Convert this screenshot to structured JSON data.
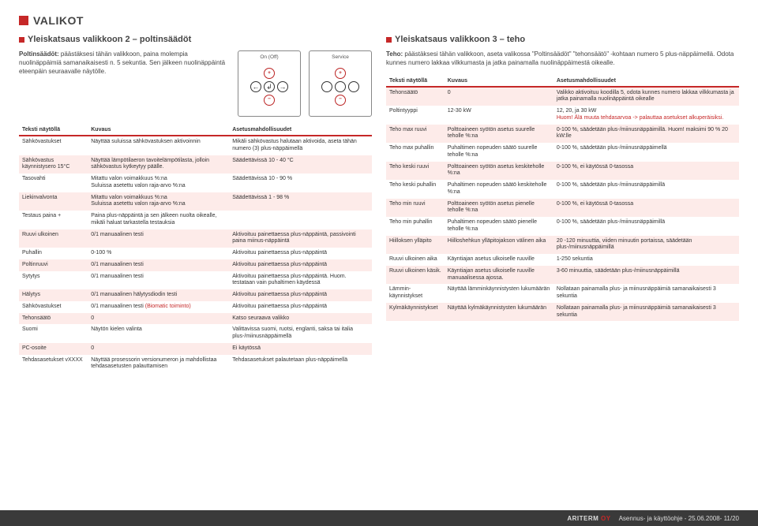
{
  "page_title": "VALIKOT",
  "footer": {
    "brand_main": "ARITERM",
    "brand_suffix": "OY",
    "doc": "Asennus- ja käyttöohje - 25.06.2008- 11/20"
  },
  "left": {
    "title": "Yleiskatsaus valikkoon 2 – poltinsäädöt",
    "intro_bold": "Poltinsäädöt:",
    "intro_rest": " päästäksesi tähän valikkoon, paina molempia nuolinäppäimiä samanaikaisesti n. 5 sekuntia. Sen jälkeen nuolinäppäintä eteenpäin seuraavalle näytölle.",
    "diag1": "On (Off)",
    "diag2": "Service",
    "headers": [
      "Teksti näytöllä",
      "Kuvaus",
      "Asetusmahdollisuudet"
    ],
    "rows": [
      {
        "band": false,
        "c": [
          "Sähkövastukset",
          "Näyttää suluissa sähkövastuksen aktivoinnin",
          "Mikäli sähkövastus halutaan aktivoida, aseta tähän numero (3) plus-näppäimellä"
        ]
      },
      {
        "band": true,
        "c": [
          "Sähkövastus käynnistysero 15°C",
          "Näyttää lämpötilaeron tavoitelämpötilasta, jolloin sähkövastus kytkeytyy päälle.",
          "Säädettävissä 10 - 40 °C"
        ]
      },
      {
        "band": false,
        "c": [
          "Tasovahti",
          "Mitattu valon voimakkuus %:na\nSuluissa asetettu valon raja-arvo %:na",
          "Säädettävissä 10 - 90 %"
        ]
      },
      {
        "band": true,
        "c": [
          "Liekinvalvonta",
          "Mitattu valon voimakkuus %:na\nSuluissa asetettu valon raja-arvo %:na",
          "Säädettävissä 1 - 98 %"
        ]
      },
      {
        "band": false,
        "c": [
          "Testaus paina +",
          "Paina plus-näppäintä ja sen jälkeen nuolta oikealle, mikäli haluat tarkastella testauksia",
          ""
        ]
      },
      {
        "band": true,
        "c": [
          "Ruuvi ulkoinen",
          "0/1 manuaalinen testi",
          "Aktivoituu painettaessa plus-näppäintä, passivointi paina miinus-näppäintä"
        ]
      },
      {
        "band": false,
        "c": [
          "Puhallin",
          "0-100 %",
          "Aktivoituu painettaessa plus-näppäintä"
        ]
      },
      {
        "band": true,
        "c": [
          "Poltinruuvi",
          "0/1 manuaalinen testi",
          "Aktivoituu painettaessa plus-näppäintä"
        ]
      },
      {
        "band": false,
        "c": [
          "Sytytys",
          "0/1 manuaalinen testi",
          "Aktivoituu painettaessa plus-näppäintä. Huom. testataan vain puhaltimen käydessä"
        ]
      },
      {
        "band": true,
        "c": [
          "Hälytys",
          "0/1 manuaalinen hälytysdiodin testi",
          "Aktivoituu painettaessa plus-näppäintä"
        ]
      },
      {
        "band": false,
        "c": [
          "Sähkövastukset",
          "0/1 manuaalinen testi (Biomatic toiminto)",
          "Aktivoituu painettaessa plus-näppäintä"
        ],
        "redIdx": 1
      },
      {
        "band": true,
        "c": [
          "Tehonsäätö",
          "0",
          "Katso seuraava valikko"
        ]
      },
      {
        "band": false,
        "c": [
          "Suomi",
          "Näytön kielen valinta",
          "Valittavissa suomi, ruotsi, englanti, saksa tai italia plus-/miinusnäppäimellä"
        ]
      },
      {
        "band": true,
        "c": [
          "PC-osoite",
          "0",
          "Ei käytössä"
        ]
      },
      {
        "band": false,
        "c": [
          "Tehdasasetukset vXXXX",
          "Näyttää prosessorin versionumeron ja mahdollistaa tehdasasetusten palauttamisen",
          "Tehdasasetukset palautetaan plus-näppäimellä"
        ]
      }
    ]
  },
  "right": {
    "title": "Yleiskatsaus valikkoon 3 – teho",
    "intro_bold": "Teho:",
    "intro_rest": " päästäksesi tähän valikkoon, aseta valikossa \"Poltinsäädöt\" \"tehonsäätö\" -kohtaan numero 5 plus-näppäimellä. Odota kunnes numero lakkaa vilkkumasta ja jatka painamalla nuolinäppäimestä oikealle.",
    "headers": [
      "Teksti näytöllä",
      "Kuvaus",
      "Asetusmahdollisuudet"
    ],
    "rows": [
      {
        "band": true,
        "c": [
          "Tehonsäätö",
          "0",
          "Valikko aktivoituu koodilla 5, odota kunnes numero lakkaa vilkkumasta ja jatka painamalla nuolinäppäintä oikealle"
        ]
      },
      {
        "band": false,
        "c": [
          "Poltintyyppi",
          "12-30 kW",
          "12, 20, ja 30 kW\nHuom! Älä muuta tehdasarvoa -> palauttaa asetukset alkuperäisiksi."
        ],
        "redLine": true
      },
      {
        "band": true,
        "c": [
          "Teho max ruuvi",
          "Polttoaineen syötön asetus suurelle teholle %:na",
          "0-100 %, säädetään plus-/miinusnäppäimillä. Huom! maksimi 90 % 20 kW:lle"
        ]
      },
      {
        "band": false,
        "c": [
          "Teho max puhallin",
          "Puhaltimen nopeuden säätö suurelle teholle %:na",
          "0-100 %, säädetään plus-/miinusnäppäimellä"
        ]
      },
      {
        "band": true,
        "c": [
          "Teho keski ruuvi",
          "Polttoaineen syötön asetus keskiteholle %:na",
          "0-100 %, ei käytössä 0-tasossa"
        ]
      },
      {
        "band": false,
        "c": [
          "Teho keski puhallin",
          "Puhaltimen nopeuden säätö keskiteholle %:na",
          "0-100 %, säädetään plus-/miinusnäppäimillä"
        ]
      },
      {
        "band": true,
        "c": [
          "Teho min ruuvi",
          "Polttoaineen syötön asetus pienelle teholle %:na",
          "0-100 %, ei käytössä 0-tasossa"
        ]
      },
      {
        "band": false,
        "c": [
          "Teho min puhallin",
          "Puhaltimen nopeuden säätö pienelle teholle %:na",
          "0-100 %, säädetään plus-/miinusnäppäimillä"
        ]
      },
      {
        "band": true,
        "c": [
          "Hiilloksen ylläpito",
          "Hiilloshehkun ylläpitojakson välinen aika",
          "20 -120 minuuttia, viiden minuutin portaissa, säädetään plus-/miinusnäppäimillä"
        ]
      },
      {
        "band": false,
        "c": [
          "Ruuvi ulkoinen aika",
          "Käyntiajan asetus ulkoiselle ruuville",
          "1-250 sekuntia"
        ]
      },
      {
        "band": true,
        "c": [
          "Ruuvi ulkoinen käsik.",
          "Käyntiajan asetus ulkoiselle ruuville manuaalisessa ajossa.",
          "3-60 minuuttia, säädetään plus-/miinusnäppäimillä"
        ]
      },
      {
        "band": false,
        "c": [
          "Lämmin-käynnistykset",
          "Näyttää lämminkäynnistysten lukumäärän",
          "Nollataan painamalla plus- ja miinusnäppäimiä samanaikaisesti 3 sekuntia"
        ]
      },
      {
        "band": true,
        "c": [
          "Kylmäkäynnistykset",
          "Näyttää kylmäkäynnistysten lukumäärän",
          "Nollataan painamalla plus- ja miinusnäppäimiä samanaikaisesti 3 sekuntia"
        ]
      }
    ]
  }
}
